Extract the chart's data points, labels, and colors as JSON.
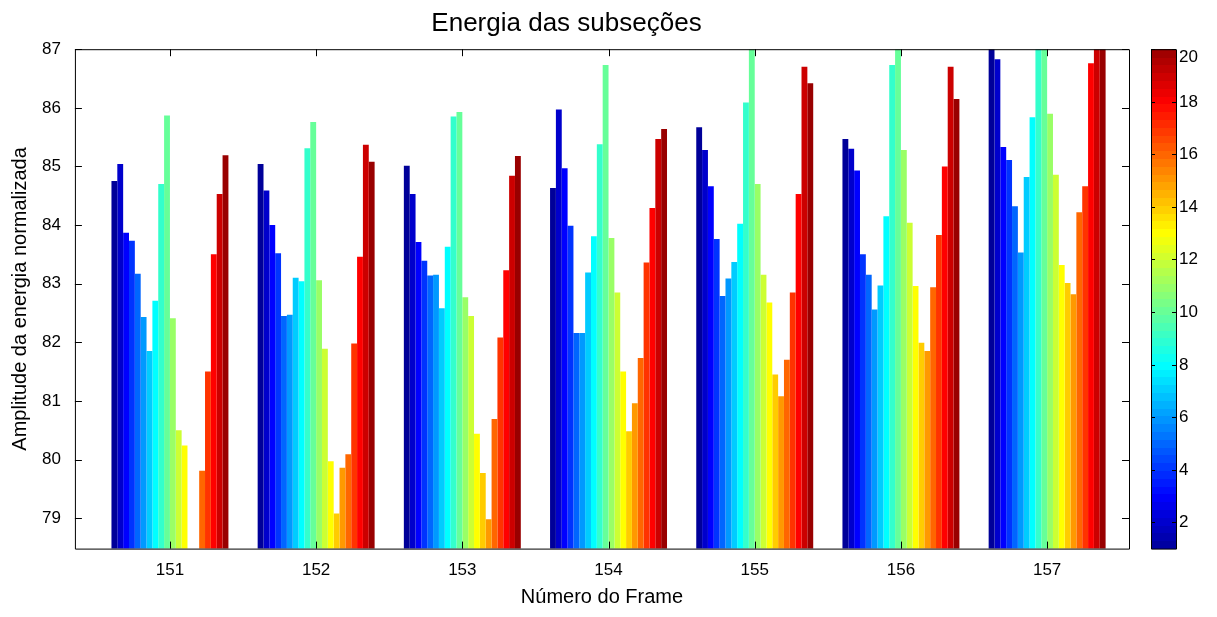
{
  "chart_data": {
    "type": "bar",
    "title": "Energia das subseções",
    "xlabel": "Número do Frame",
    "ylabel": "Amplitude da energia normalizada",
    "x": [
      151,
      152,
      153,
      154,
      155,
      156,
      157
    ],
    "xlim": [
      150.35,
      157.56
    ],
    "xticks": [
      151,
      152,
      153,
      154,
      155,
      156,
      157
    ],
    "ylim": [
      78.48,
      87
    ],
    "yticks": [
      79,
      80,
      81,
      82,
      83,
      84,
      85,
      86,
      87
    ],
    "clim": [
      1,
      20
    ],
    "cticks": [
      2,
      4,
      6,
      8,
      10,
      12,
      14,
      16,
      18,
      20
    ],
    "legend": false,
    "series": [
      {
        "color": "#000099",
        "values": [
          84.75,
          85.04,
          85.01,
          84.63,
          85.67,
          85.47,
          87
        ]
      },
      {
        "color": "#0000cc",
        "values": [
          85.04,
          84.59,
          84.53,
          85.97,
          85.28,
          85.3,
          86.83
        ]
      },
      {
        "color": "#0000ff",
        "values": [
          83.87,
          84.0,
          83.71,
          84.97,
          84.66,
          84.93,
          85.33
        ]
      },
      {
        "color": "#0033ff",
        "values": [
          83.73,
          83.52,
          83.39,
          83.99,
          83.76,
          83.5,
          85.11
        ]
      },
      {
        "color": "#0066ff",
        "values": [
          83.17,
          82.45,
          83.14,
          82.16,
          82.79,
          83.15,
          84.32
        ]
      },
      {
        "color": "#0099ff",
        "values": [
          82.43,
          82.47,
          83.15,
          82.16,
          83.09,
          82.56,
          83.53
        ]
      },
      {
        "color": "#00ccff",
        "values": [
          81.85,
          83.1,
          82.58,
          83.19,
          83.37,
          82.97,
          84.82
        ]
      },
      {
        "color": "#00ffff",
        "values": [
          82.71,
          83.04,
          83.63,
          83.81,
          84.02,
          84.15,
          85.84
        ]
      },
      {
        "color": "#33ffcc",
        "values": [
          84.7,
          85.31,
          85.85,
          85.38,
          86.09,
          86.73,
          87
        ]
      },
      {
        "color": "#66ff99",
        "values": [
          85.87,
          85.76,
          85.93,
          86.73,
          87,
          87,
          87
        ]
      },
      {
        "color": "#99ff66",
        "values": [
          82.41,
          83.06,
          82.77,
          83.78,
          84.7,
          85.28,
          85.9
        ]
      },
      {
        "color": "#ccff33",
        "values": [
          80.5,
          81.89,
          82.45,
          82.85,
          83.15,
          84.04,
          84.86
        ]
      },
      {
        "color": "#ffff00",
        "values": [
          80.24,
          79.97,
          80.44,
          81.5,
          82.68,
          82.96,
          83.32
        ]
      },
      {
        "color": "#ffcc00",
        "values": [
          null,
          79.08,
          79.77,
          80.48,
          81.45,
          81.99,
          83.01
        ]
      },
      {
        "color": "#ff9900",
        "values": [
          null,
          79.86,
          78.98,
          80.96,
          81.08,
          81.85,
          82.82
        ]
      },
      {
        "color": "#ff6600",
        "values": [
          79.81,
          80.09,
          80.69,
          81.73,
          81.7,
          82.94,
          84.22
        ]
      },
      {
        "color": "#ff3300",
        "values": [
          81.5,
          81.98,
          82.08,
          83.36,
          82.85,
          83.83,
          84.66
        ]
      },
      {
        "color": "#ff0000",
        "values": [
          83.5,
          83.46,
          83.23,
          84.29,
          84.53,
          85.0,
          86.76
        ]
      },
      {
        "color": "#cc0000",
        "values": [
          84.53,
          85.37,
          84.84,
          85.47,
          86.7,
          86.7,
          87
        ]
      },
      {
        "color": "#990000",
        "values": [
          85.19,
          85.08,
          85.18,
          85.64,
          86.42,
          86.15,
          87
        ]
      }
    ]
  }
}
